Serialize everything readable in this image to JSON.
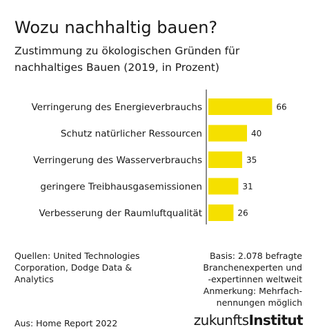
{
  "title": "Wozu nachhaltig bauen?",
  "subtitle": "Zustimmung zu ökologischen Gründen für nachhaltiges Bauen (2019, in Prozent)",
  "chart_data": {
    "type": "bar",
    "orientation": "horizontal",
    "categories": [
      "Verringerung des Energieverbrauchs",
      "Schutz natürlicher Ressourcen",
      "Verringerung des Wasserverbrauchs",
      "geringere Treibhausgasemissionen",
      "Verbesserung der Raumluftqualität"
    ],
    "values": [
      66,
      40,
      35,
      31,
      26
    ],
    "xlim": [
      0,
      70
    ],
    "bar_color": "#f5e000",
    "grid": false,
    "legend": "none"
  },
  "footer": {
    "sources": "Quellen: United Technologies\nCorporation, Dodge Data &\nAnalytics",
    "basis": "Basis: 2.078 befragte\nBranchenexperten und\n-expertinnen weltweit\nAnmerkung: Mehrfach-\nnennungen möglich",
    "credit": "Aus: Home Report 2022",
    "logo_regular": "zukunfts",
    "logo_bold": "Institut"
  }
}
